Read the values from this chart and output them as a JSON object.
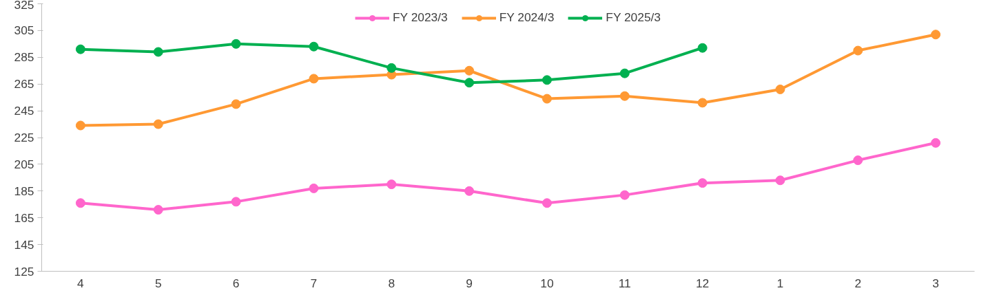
{
  "chart_data": {
    "type": "line",
    "categories": [
      "4",
      "5",
      "6",
      "7",
      "8",
      "9",
      "10",
      "11",
      "12",
      "1",
      "2",
      "3"
    ],
    "series": [
      {
        "name": "FY 2023/3",
        "color": "#ff66cc",
        "values": [
          176,
          171,
          177,
          187,
          190,
          185,
          176,
          182,
          191,
          193,
          208,
          221
        ]
      },
      {
        "name": "FY 2024/3",
        "color": "#ff9933",
        "values": [
          234,
          235,
          250,
          269,
          272,
          275,
          254,
          256,
          251,
          261,
          290,
          302
        ]
      },
      {
        "name": "FY 2025/3",
        "color": "#00b050",
        "values": [
          291,
          289,
          295,
          293,
          277,
          266,
          268,
          273,
          292,
          null,
          null,
          null
        ]
      }
    ],
    "ylim": [
      125,
      325
    ],
    "yticks": [
      125,
      145,
      165,
      185,
      205,
      225,
      245,
      265,
      285,
      305,
      325
    ],
    "grid": false,
    "legend": "top",
    "marker": "circle",
    "line_style": "solid"
  }
}
